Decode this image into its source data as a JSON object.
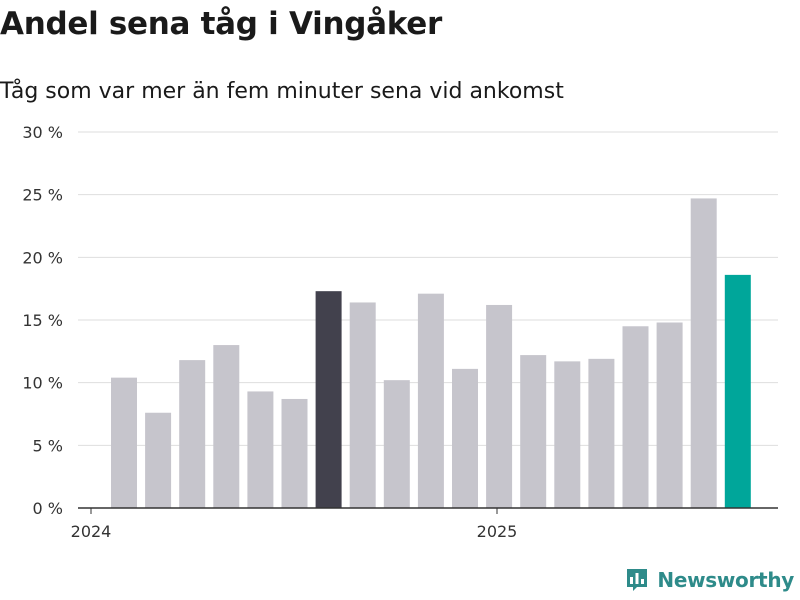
{
  "header": {
    "title": "Andel sena tåg i Vingåker",
    "subtitle": "Tåg som var mer än fem minuter sena vid ankomst"
  },
  "brand": {
    "name": "Newsworthy",
    "color": "#2e8b8a"
  },
  "colors": {
    "default_bar": "#c6c5cc",
    "highlight_bar": "#42414d",
    "latest_bar": "#00a69a",
    "grid": "#dedede",
    "axis": "#333333"
  },
  "chart_data": {
    "type": "bar",
    "title": "Andel sena tåg i Vingåker",
    "subtitle": "Tåg som var mer än fem minuter sena vid ankomst",
    "xlabel": "",
    "ylabel": "",
    "x_tick_labels": [
      "2024",
      "2025"
    ],
    "y_ticks": [
      0,
      5,
      10,
      15,
      20,
      25,
      30
    ],
    "y_tick_labels": [
      "0 %",
      "5 %",
      "10 %",
      "15 %",
      "20 %",
      "25 %",
      "30 %"
    ],
    "ylim": [
      0,
      30
    ],
    "grid": true,
    "legend": "none",
    "categories": [
      "2024-01",
      "2024-02",
      "2024-03",
      "2024-04",
      "2024-05",
      "2024-06",
      "2024-07",
      "2024-08",
      "2024-09",
      "2024-10",
      "2024-11",
      "2024-12",
      "2025-01",
      "2025-02",
      "2025-03",
      "2025-04",
      "2025-05",
      "2025-06",
      "2025-07"
    ],
    "values": [
      10.4,
      7.6,
      11.8,
      13.0,
      9.3,
      8.7,
      17.3,
      16.4,
      10.2,
      17.1,
      11.1,
      16.2,
      12.2,
      11.7,
      11.9,
      14.5,
      14.8,
      24.7,
      18.6
    ],
    "highlight": {
      "2024-07": "highlight_bar",
      "2025-07": "latest_bar"
    }
  }
}
